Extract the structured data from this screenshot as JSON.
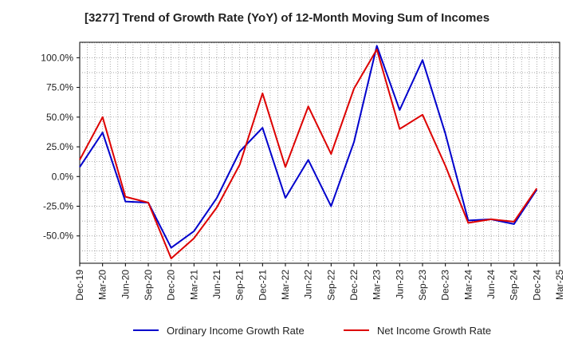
{
  "chart_data": {
    "type": "line",
    "title": "[3277]  Trend of Growth Rate (YoY) of 12-Month Moving Sum of Incomes",
    "xlabel": "",
    "ylabel": "",
    "ylim": [
      -73,
      113
    ],
    "y_ticks": [
      100,
      75,
      50,
      25,
      0,
      -25,
      -50
    ],
    "y_tick_labels": [
      "100.0%",
      "75.0%",
      "50.0%",
      "25.0%",
      "0.0%",
      "-25.0%",
      "-50.0%"
    ],
    "x_tick_labels": [
      "Dec-19",
      "Mar-20",
      "Jun-20",
      "Sep-20",
      "Dec-20",
      "Mar-21",
      "Jun-21",
      "Sep-21",
      "Dec-21",
      "Mar-22",
      "Jun-22",
      "Sep-22",
      "Dec-22",
      "Mar-23",
      "Jun-23",
      "Sep-23",
      "Dec-23",
      "Mar-24",
      "Jun-24",
      "Sep-24",
      "Dec-24",
      "Mar-25"
    ],
    "categories": [
      "Dec-19",
      "Jan-20",
      "Feb-20",
      "Mar-20",
      "Apr-20",
      "May-20",
      "Jun-20",
      "Jul-20",
      "Aug-20",
      "Sep-20",
      "Oct-20",
      "Nov-20",
      "Dec-20",
      "Jan-21",
      "Feb-21",
      "Mar-21",
      "Apr-21",
      "May-21",
      "Jun-21",
      "Jul-21",
      "Aug-21",
      "Sep-21",
      "Oct-21",
      "Nov-21",
      "Dec-21",
      "Jan-22",
      "Feb-22",
      "Mar-22",
      "Apr-22",
      "May-22",
      "Jun-22",
      "Jul-22",
      "Aug-22",
      "Sep-22",
      "Oct-22",
      "Nov-22",
      "Dec-22",
      "Jan-23",
      "Feb-23",
      "Mar-23",
      "Apr-23",
      "May-23",
      "Jun-23",
      "Jul-23",
      "Aug-23",
      "Sep-23",
      "Oct-23",
      "Nov-23",
      "Dec-23",
      "Jan-24",
      "Feb-24",
      "Mar-24",
      "Apr-24",
      "May-24",
      "Jun-24",
      "Jul-24",
      "Aug-24",
      "Sep-24",
      "Oct-24",
      "Nov-24",
      "Dec-24",
      "Jan-25",
      "Feb-25",
      "Mar-25"
    ],
    "grid": true,
    "legend": "bottom",
    "series": [
      {
        "name": "Ordinary Income Growth Rate",
        "color": "#0000cc",
        "values": [
          8,
          null,
          null,
          37,
          null,
          null,
          -21,
          null,
          null,
          -22,
          null,
          null,
          -60,
          null,
          null,
          -46,
          null,
          null,
          -18,
          null,
          null,
          21,
          null,
          null,
          41,
          null,
          null,
          -18,
          null,
          null,
          14,
          null,
          null,
          -25,
          null,
          null,
          29,
          null,
          null,
          110,
          null,
          null,
          56,
          null,
          null,
          98,
          null,
          null,
          36,
          null,
          null,
          -37,
          null,
          null,
          -36,
          null,
          null,
          -40,
          null,
          null,
          -11,
          null,
          null,
          null
        ]
      },
      {
        "name": "Net Income Growth Rate",
        "color": "#dd0000",
        "values": [
          14,
          null,
          null,
          50,
          null,
          null,
          -17,
          null,
          null,
          -22,
          null,
          null,
          -69,
          null,
          null,
          -52,
          null,
          null,
          -26,
          null,
          null,
          10,
          null,
          null,
          70,
          null,
          null,
          8,
          null,
          null,
          59,
          null,
          null,
          19,
          null,
          null,
          74,
          null,
          null,
          107,
          null,
          null,
          40,
          null,
          null,
          52,
          null,
          null,
          9,
          null,
          null,
          -39,
          null,
          null,
          -36,
          null,
          null,
          -38,
          null,
          null,
          -10,
          null,
          null,
          null
        ]
      }
    ]
  }
}
